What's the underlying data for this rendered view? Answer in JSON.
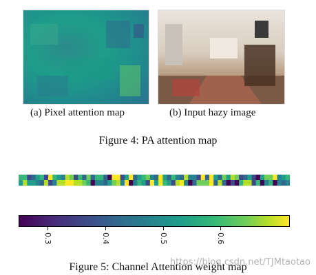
{
  "figure4": {
    "panel_a_caption": "(a) Pixel attention map",
    "panel_b_caption": "(b) Input hazy image",
    "caption": "Figure 4: PA attention map"
  },
  "figure5": {
    "caption": "Figure 5: Channel Attention weight map",
    "colorbar": {
      "ticks": [
        "0.3",
        "0.4",
        "0.5",
        "0.6"
      ],
      "range": [
        0.25,
        0.72
      ],
      "tick_values": [
        0.3,
        0.4,
        0.5,
        0.6
      ],
      "colormap": "viridis"
    },
    "strip_rows": 2,
    "strip_cols": 64
  },
  "watermark": "https://blog.csdn.net/TJMtaotao"
}
